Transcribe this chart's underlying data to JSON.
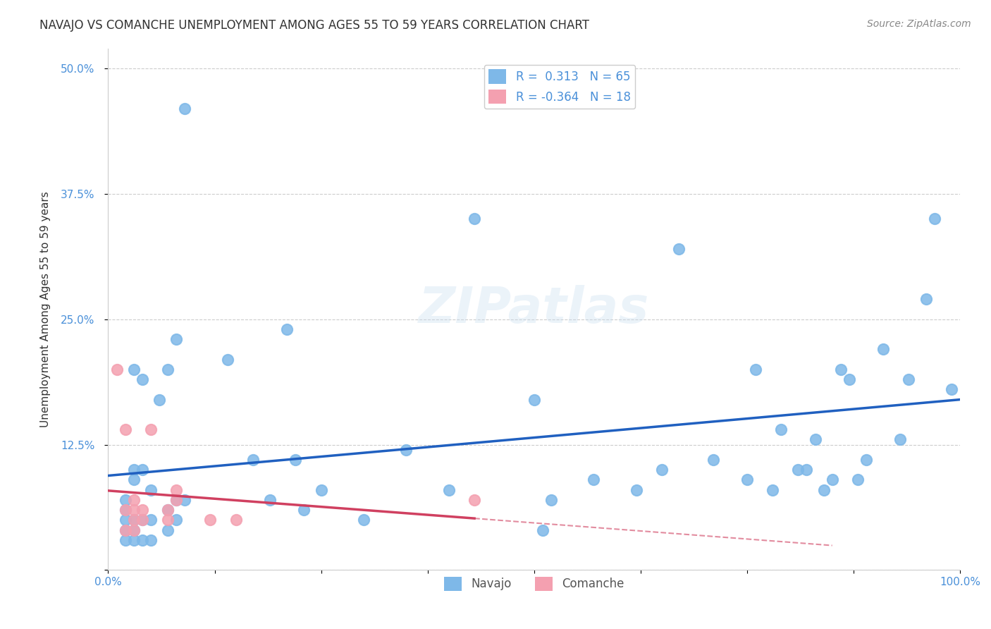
{
  "title": "NAVAJO VS COMANCHE UNEMPLOYMENT AMONG AGES 55 TO 59 YEARS CORRELATION CHART",
  "source": "Source: ZipAtlas.com",
  "xlabel": "",
  "ylabel": "Unemployment Among Ages 55 to 59 years",
  "watermark": "ZIPatlas",
  "navajo_R": 0.313,
  "navajo_N": 65,
  "comanche_R": -0.364,
  "comanche_N": 18,
  "navajo_color": "#7eb8e8",
  "comanche_color": "#f4a0b0",
  "navajo_line_color": "#2060c0",
  "comanche_line_color": "#d04060",
  "xlim": [
    0,
    1.0
  ],
  "ylim": [
    0,
    0.52
  ],
  "xticks": [
    0.0,
    0.125,
    0.25,
    0.375,
    0.5,
    0.625,
    0.75,
    0.875,
    1.0
  ],
  "yticks": [
    0.0,
    0.125,
    0.25,
    0.375,
    0.5
  ],
  "xtick_labels": [
    "0.0%",
    "",
    "",
    "",
    "",
    "",
    "",
    "",
    "100.0%"
  ],
  "ytick_labels": [
    "",
    "12.5%",
    "25.0%",
    "37.5%",
    "50.0%"
  ],
  "navajo_x": [
    0.02,
    0.02,
    0.02,
    0.02,
    0.02,
    0.03,
    0.03,
    0.03,
    0.03,
    0.03,
    0.03,
    0.04,
    0.04,
    0.04,
    0.04,
    0.05,
    0.05,
    0.05,
    0.06,
    0.07,
    0.07,
    0.07,
    0.08,
    0.08,
    0.08,
    0.09,
    0.09,
    0.14,
    0.17,
    0.19,
    0.21,
    0.22,
    0.23,
    0.25,
    0.3,
    0.35,
    0.4,
    0.43,
    0.5,
    0.51,
    0.52,
    0.57,
    0.62,
    0.65,
    0.67,
    0.71,
    0.75,
    0.76,
    0.78,
    0.79,
    0.81,
    0.82,
    0.83,
    0.84,
    0.85,
    0.86,
    0.87,
    0.88,
    0.89,
    0.91,
    0.93,
    0.94,
    0.96,
    0.97,
    0.99
  ],
  "navajo_y": [
    0.03,
    0.04,
    0.05,
    0.06,
    0.07,
    0.03,
    0.04,
    0.05,
    0.09,
    0.1,
    0.2,
    0.03,
    0.05,
    0.1,
    0.19,
    0.03,
    0.05,
    0.08,
    0.17,
    0.04,
    0.06,
    0.2,
    0.05,
    0.07,
    0.23,
    0.07,
    0.46,
    0.21,
    0.11,
    0.07,
    0.24,
    0.11,
    0.06,
    0.08,
    0.05,
    0.12,
    0.08,
    0.35,
    0.17,
    0.04,
    0.07,
    0.09,
    0.08,
    0.1,
    0.32,
    0.11,
    0.09,
    0.2,
    0.08,
    0.14,
    0.1,
    0.1,
    0.13,
    0.08,
    0.09,
    0.2,
    0.19,
    0.09,
    0.11,
    0.22,
    0.13,
    0.19,
    0.27,
    0.35,
    0.18
  ],
  "comanche_x": [
    0.01,
    0.02,
    0.02,
    0.02,
    0.03,
    0.03,
    0.03,
    0.03,
    0.04,
    0.04,
    0.05,
    0.07,
    0.07,
    0.08,
    0.08,
    0.12,
    0.15,
    0.43
  ],
  "comanche_y": [
    0.2,
    0.04,
    0.06,
    0.14,
    0.04,
    0.05,
    0.06,
    0.07,
    0.05,
    0.06,
    0.14,
    0.05,
    0.06,
    0.07,
    0.08,
    0.05,
    0.05,
    0.07
  ],
  "background_color": "#ffffff",
  "grid_color": "#cccccc"
}
